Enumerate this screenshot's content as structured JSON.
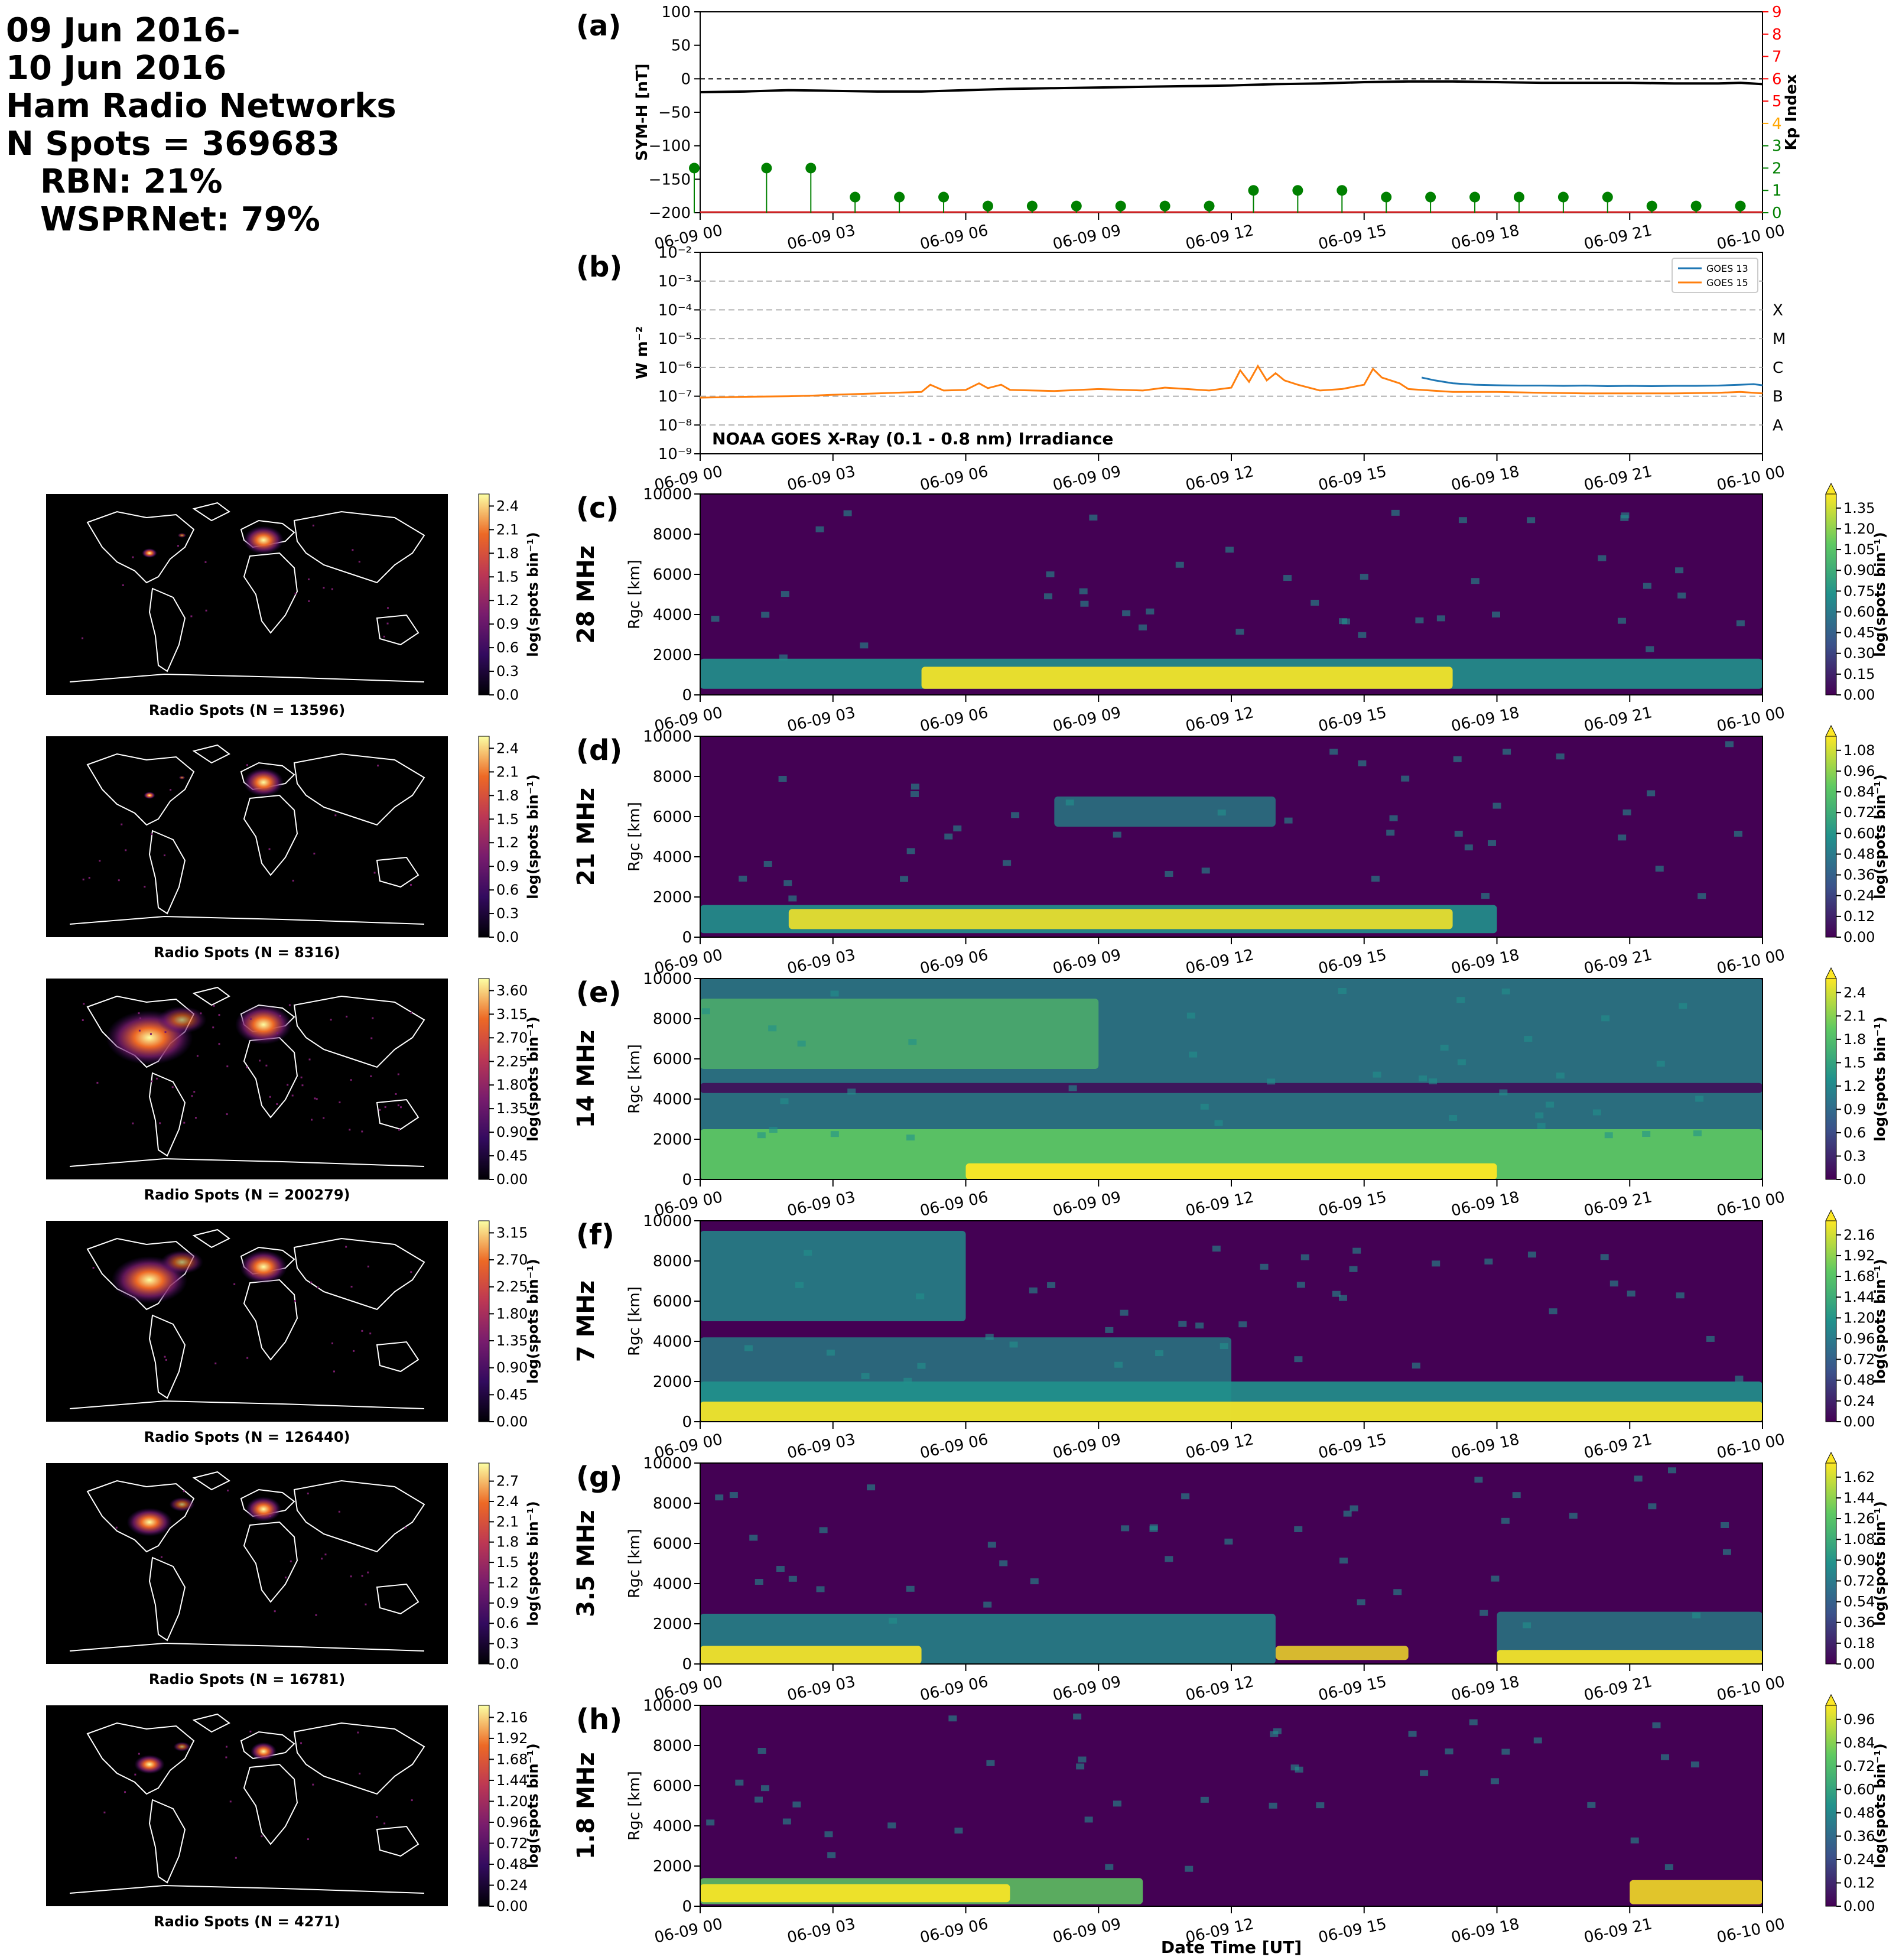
{
  "summary": {
    "line1": "09 Jun 2016-",
    "line2": "10 Jun 2016",
    "line3": "Ham Radio Networks",
    "line4": "N Spots = 369683",
    "line5": "RBN: 21%",
    "line6": "WSPRNet: 79%"
  },
  "time_ticks": [
    "06-09 00",
    "06-09 03",
    "06-09 06",
    "06-09 09",
    "06-09 12",
    "06-09 15",
    "06-09 18",
    "06-09 21",
    "06-10 00"
  ],
  "xlabel": "Date Time [UT]",
  "panel_a": {
    "letter": "(a)",
    "ylabel_left": "SYM-H [nT]",
    "ylabel_right": "Kp Index",
    "left_ticks": [
      "100",
      "50",
      "0",
      "−50",
      "−100",
      "−150",
      "−200"
    ],
    "right_ticks": [
      "0",
      "1",
      "2",
      "3",
      "4",
      "5",
      "6",
      "7",
      "8",
      "9"
    ]
  },
  "panel_b": {
    "letter": "(b)",
    "ylabel": "W m⁻²",
    "annotation": "NOAA GOES X-Ray (0.1 - 0.8 nm) Irradiance",
    "y_ticks": [
      "10⁻²",
      "10⁻³",
      "10⁻⁴",
      "10⁻⁵",
      "10⁻⁶",
      "10⁻⁷",
      "10⁻⁸",
      "10⁻⁹"
    ],
    "class_labels": [
      "X",
      "M",
      "C",
      "B",
      "A"
    ],
    "legend": [
      "GOES 13",
      "GOES 15"
    ]
  },
  "rti_common": {
    "ylabel": "Rɡc [km]",
    "y_ticks": [
      "10000",
      "8000",
      "6000",
      "4000",
      "2000",
      "0"
    ],
    "cbar_label": "log(spots bin⁻¹)"
  },
  "bands": [
    {
      "letter": "(c)",
      "band": "28 MHz",
      "map_title": "Radio Spots (N = 13596)",
      "map_ticks": [
        "2.4",
        "2.1",
        "1.8",
        "1.5",
        "1.2",
        "0.9",
        "0.6",
        "0.3",
        "0.0"
      ],
      "cbar_ticks": [
        "1.35",
        "1.20",
        "1.05",
        "0.90",
        "0.75",
        "0.60",
        "0.45",
        "0.30",
        "0.15",
        "0.00"
      ]
    },
    {
      "letter": "(d)",
      "band": "21 MHz",
      "map_title": "Radio Spots (N = 8316)",
      "map_ticks": [
        "2.4",
        "2.1",
        "1.8",
        "1.5",
        "1.2",
        "0.9",
        "0.6",
        "0.3",
        "0.0"
      ],
      "cbar_ticks": [
        "1.08",
        "0.96",
        "0.84",
        "0.72",
        "0.60",
        "0.48",
        "0.36",
        "0.24",
        "0.12",
        "0.00"
      ]
    },
    {
      "letter": "(e)",
      "band": "14 MHz",
      "map_title": "Radio Spots (N = 200279)",
      "map_ticks": [
        "3.60",
        "3.15",
        "2.70",
        "2.25",
        "1.80",
        "1.35",
        "0.90",
        "0.45",
        "0.00"
      ],
      "cbar_ticks": [
        "2.4",
        "2.1",
        "1.8",
        "1.5",
        "1.2",
        "0.9",
        "0.6",
        "0.3",
        "0.0"
      ]
    },
    {
      "letter": "(f)",
      "band": "7 MHz",
      "map_title": "Radio Spots (N = 126440)",
      "map_ticks": [
        "3.15",
        "2.70",
        "2.25",
        "1.80",
        "1.35",
        "0.90",
        "0.45",
        "0.00"
      ],
      "cbar_ticks": [
        "2.16",
        "1.92",
        "1.68",
        "1.44",
        "1.20",
        "0.96",
        "0.72",
        "0.48",
        "0.24",
        "0.00"
      ]
    },
    {
      "letter": "(g)",
      "band": "3.5 MHz",
      "map_title": "Radio Spots (N = 16781)",
      "map_ticks": [
        "2.7",
        "2.4",
        "2.1",
        "1.8",
        "1.5",
        "1.2",
        "0.9",
        "0.6",
        "0.3",
        "0.0"
      ],
      "cbar_ticks": [
        "1.62",
        "1.44",
        "1.26",
        "1.08",
        "0.90",
        "0.72",
        "0.54",
        "0.36",
        "0.18",
        "0.00"
      ]
    },
    {
      "letter": "(h)",
      "band": "1.8 MHz",
      "map_title": "Radio Spots (N = 4271)",
      "map_ticks": [
        "2.16",
        "1.92",
        "1.68",
        "1.44",
        "1.20",
        "0.96",
        "0.72",
        "0.48",
        "0.24",
        "0.00"
      ],
      "cbar_ticks": [
        "0.96",
        "0.84",
        "0.72",
        "0.60",
        "0.48",
        "0.36",
        "0.24",
        "0.12",
        "0.00"
      ]
    }
  ],
  "chart_data": [
    {
      "type": "line",
      "x_unit": "hours UT from 06-09 00",
      "xlim": [
        0,
        24
      ],
      "ylim": [
        -200,
        100
      ],
      "y2lim": [
        0,
        9
      ],
      "series": [
        {
          "values_x": [
            0,
            1,
            2,
            3,
            4,
            5,
            6,
            7,
            8,
            9,
            10,
            11,
            12,
            13,
            14,
            15,
            16,
            17,
            18,
            19,
            20,
            21,
            22,
            23,
            23.5,
            24
          ],
          "values_y": [
            -20,
            -19,
            -17,
            -18,
            -19,
            -19,
            -17,
            -15,
            -14,
            -13,
            -12,
            -11,
            -10,
            -8,
            -7,
            -5,
            -4,
            -4,
            -5,
            -6,
            -6,
            -6,
            -7,
            -7,
            -6,
            -8
          ]
        },
        {
          "values_x": [
            0,
            2,
            4,
            6,
            7,
            8,
            9,
            10,
            11,
            12,
            13,
            14,
            15,
            16,
            17,
            18,
            19,
            20,
            21,
            22,
            23
          ],
          "values_y": [
            2,
            2,
            0.7,
            0.3,
            0.3,
            0.3,
            0.3,
            0.3,
            0.3,
            1,
            1,
            1,
            0.7,
            0.7,
            0.7,
            0.7,
            0.7,
            0.7,
            0.3,
            0.3,
            0.3
          ]
        }
      ],
      "stems_kp": {
        "x": [
          -0.8,
          1,
          2,
          3,
          4,
          5,
          6,
          7,
          8,
          9,
          10,
          11,
          12,
          13,
          14,
          15,
          16,
          17,
          18,
          19,
          20,
          21,
          22,
          23
        ],
        "kp": [
          2,
          2,
          2,
          0.7,
          0.7,
          0.7,
          0.3,
          0.3,
          0.3,
          0.3,
          0.3,
          0.3,
          1,
          1,
          1,
          0.7,
          0.7,
          0.7,
          0.7,
          0.7,
          0.7,
          0.3,
          0.3,
          0.3
        ]
      },
      "reference_line_y": 0
    },
    {
      "type": "line",
      "y_scale": "log",
      "xlim": [
        0,
        24
      ],
      "ylim_exp": [
        -9,
        -2
      ],
      "grid_y": true,
      "series": [
        {
          "color": "#1f77b4",
          "x": [
            16.3,
            16.6,
            17,
            17.5,
            18,
            18.5,
            19,
            19.5,
            20,
            20.5,
            21,
            21.5,
            22,
            22.5,
            23,
            23.5,
            23.8,
            24
          ],
          "log_y": [
            -6.35,
            -6.45,
            -6.55,
            -6.6,
            -6.62,
            -6.63,
            -6.63,
            -6.64,
            -6.63,
            -6.65,
            -6.64,
            -6.65,
            -6.64,
            -6.64,
            -6.63,
            -6.6,
            -6.58,
            -6.62
          ]
        },
        {
          "color": "#ff7f0e",
          "x": [
            0,
            1,
            2,
            2.5,
            3,
            4,
            5,
            5.2,
            5.5,
            6,
            6.3,
            6.5,
            6.8,
            7,
            8,
            9,
            10,
            10.5,
            11,
            11.5,
            12,
            12.2,
            12.4,
            12.6,
            12.8,
            13,
            13.2,
            13.5,
            14,
            14.5,
            15,
            15.2,
            15.4,
            15.8,
            16,
            16.5,
            17,
            18,
            19,
            20,
            21,
            22,
            23,
            23.5,
            24
          ],
          "log_y": [
            -7.05,
            -7.02,
            -7.0,
            -6.98,
            -6.95,
            -6.9,
            -6.85,
            -6.6,
            -6.8,
            -6.78,
            -6.55,
            -6.72,
            -6.6,
            -6.78,
            -6.82,
            -6.75,
            -6.8,
            -6.7,
            -6.75,
            -6.8,
            -6.7,
            -6.1,
            -6.5,
            -5.95,
            -6.45,
            -6.2,
            -6.45,
            -6.6,
            -6.8,
            -6.75,
            -6.6,
            -6.05,
            -6.35,
            -6.55,
            -6.75,
            -6.8,
            -6.85,
            -6.85,
            -6.88,
            -6.9,
            -6.9,
            -6.9,
            -6.88,
            -6.85,
            -6.9
          ]
        }
      ]
    }
  ]
}
